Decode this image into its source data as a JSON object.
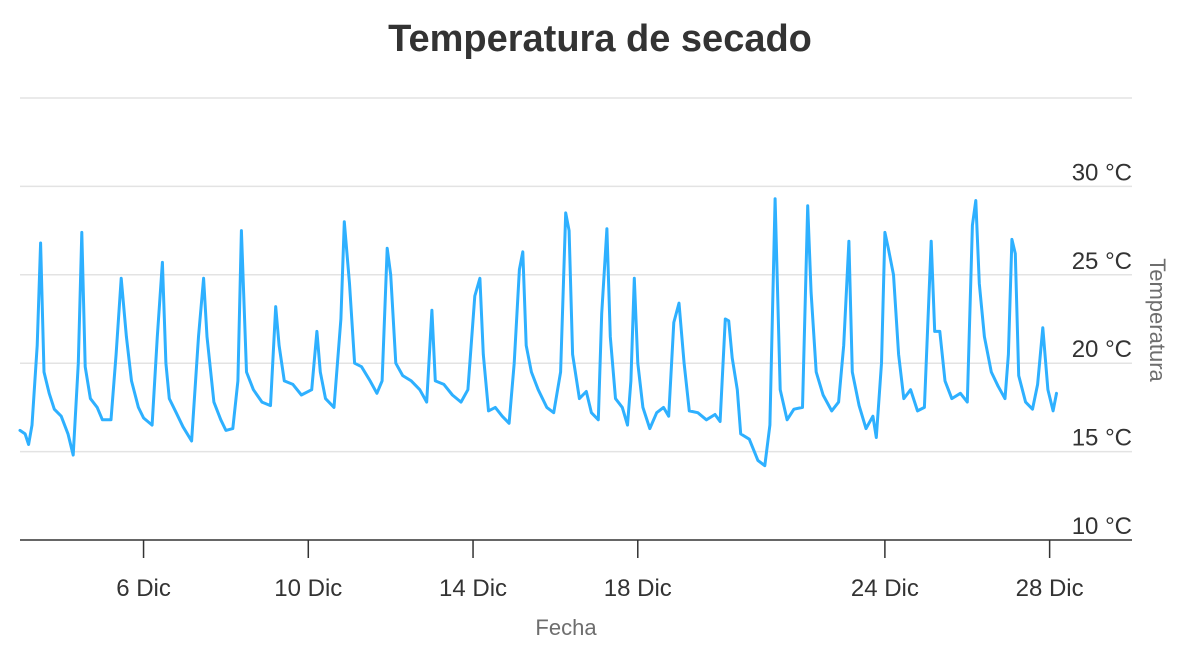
{
  "chart_data": {
    "type": "line",
    "title": "Temperatura de secado",
    "xlabel": "Fecha",
    "ylabel": "Temperatura",
    "x_start": "2023-12-03",
    "x_end": "2023-12-30",
    "ylim": [
      10,
      35
    ],
    "y_ticks": [
      {
        "value": 10,
        "label": "10 °C"
      },
      {
        "value": 15,
        "label": "15 °C"
      },
      {
        "value": 20,
        "label": "20 °C"
      },
      {
        "value": 25,
        "label": "25 °C"
      },
      {
        "value": 30,
        "label": "30 °C"
      }
    ],
    "x_ticks": [
      {
        "date": "2023-12-06",
        "label": "6 Dic"
      },
      {
        "date": "2023-12-10",
        "label": "10 Dic"
      },
      {
        "date": "2023-12-14",
        "label": "14 Dic"
      },
      {
        "date": "2023-12-18",
        "label": "18 Dic"
      },
      {
        "date": "2023-12-24",
        "label": "24 Dic"
      },
      {
        "date": "2023-12-28",
        "label": "28 Dic"
      }
    ],
    "grid": true,
    "line_color": "#2eb0ff",
    "series": [
      {
        "values": [
          [
            "2023-12-03",
            16.2
          ],
          [
            "2023-12-03T03:00",
            16.0
          ],
          [
            "2023-12-03T05:00",
            15.4
          ],
          [
            "2023-12-03T07:00",
            16.5
          ],
          [
            "2023-12-03T10:00",
            21.0
          ],
          [
            "2023-12-03T12:00",
            26.8
          ],
          [
            "2023-12-03T14:00",
            19.5
          ],
          [
            "2023-12-03T17:00",
            18.3
          ],
          [
            "2023-12-03T20:00",
            17.4
          ],
          [
            "2023-12-04",
            17.0
          ],
          [
            "2023-12-04T04:00",
            16.0
          ],
          [
            "2023-12-04T07:00",
            14.8
          ],
          [
            "2023-12-04T10:00",
            20.0
          ],
          [
            "2023-12-04T12:00",
            27.4
          ],
          [
            "2023-12-04T14:00",
            19.8
          ],
          [
            "2023-12-04T17:00",
            18.0
          ],
          [
            "2023-12-04T21:00",
            17.5
          ],
          [
            "2023-12-05",
            16.8
          ],
          [
            "2023-12-05T05:00",
            16.8
          ],
          [
            "2023-12-05T08:00",
            20.5
          ],
          [
            "2023-12-05T11:00",
            24.8
          ],
          [
            "2023-12-05T14:00",
            21.5
          ],
          [
            "2023-12-05T17:00",
            19.0
          ],
          [
            "2023-12-05T21:00",
            17.5
          ],
          [
            "2023-12-06",
            16.9
          ],
          [
            "2023-12-06T05:00",
            16.5
          ],
          [
            "2023-12-06T08:00",
            21.5
          ],
          [
            "2023-12-06T11:00",
            25.7
          ],
          [
            "2023-12-06T13:00",
            20.0
          ],
          [
            "2023-12-06T15:00",
            18.0
          ],
          [
            "2023-12-06T19:00",
            17.2
          ],
          [
            "2023-12-06T23:00",
            16.4
          ],
          [
            "2023-12-07T04:00",
            15.6
          ],
          [
            "2023-12-07T08:00",
            21.5
          ],
          [
            "2023-12-07T11:00",
            24.8
          ],
          [
            "2023-12-07T13:00",
            21.5
          ],
          [
            "2023-12-07T17:00",
            17.8
          ],
          [
            "2023-12-07T21:00",
            16.8
          ],
          [
            "2023-12-08",
            16.2
          ],
          [
            "2023-12-08T04:00",
            16.3
          ],
          [
            "2023-12-08T07:00",
            19.0
          ],
          [
            "2023-12-08T09:00",
            27.5
          ],
          [
            "2023-12-08T12:00",
            19.5
          ],
          [
            "2023-12-08T16:00",
            18.5
          ],
          [
            "2023-12-08T21:00",
            17.8
          ],
          [
            "2023-12-09T02:00",
            17.6
          ],
          [
            "2023-12-09T05:00",
            23.2
          ],
          [
            "2023-12-09T07:00",
            21.0
          ],
          [
            "2023-12-09T10:00",
            19.0
          ],
          [
            "2023-12-09T15:00",
            18.8
          ],
          [
            "2023-12-09T20:00",
            18.2
          ],
          [
            "2023-12-10T02:00",
            18.5
          ],
          [
            "2023-12-10T05:00",
            21.8
          ],
          [
            "2023-12-10T07:00",
            19.5
          ],
          [
            "2023-12-10T10:00",
            18.0
          ],
          [
            "2023-12-10T15:00",
            17.5
          ],
          [
            "2023-12-10T19:00",
            22.5
          ],
          [
            "2023-12-10T21:00",
            28.0
          ],
          [
            "2023-12-11",
            24.5
          ],
          [
            "2023-12-11T03:00",
            20.0
          ],
          [
            "2023-12-11T07:00",
            19.8
          ],
          [
            "2023-12-11T12:00",
            19.0
          ],
          [
            "2023-12-11T16:00",
            18.3
          ],
          [
            "2023-12-11T19:00",
            19.0
          ],
          [
            "2023-12-11T22:00",
            26.5
          ],
          [
            "2023-12-12",
            25.0
          ],
          [
            "2023-12-12T03:00",
            20.0
          ],
          [
            "2023-12-12T07:00",
            19.3
          ],
          [
            "2023-12-12T12:00",
            19.0
          ],
          [
            "2023-12-12T17:00",
            18.5
          ],
          [
            "2023-12-12T21:00",
            17.8
          ],
          [
            "2023-12-13",
            23.0
          ],
          [
            "2023-12-13T02:00",
            19.0
          ],
          [
            "2023-12-13T07:00",
            18.8
          ],
          [
            "2023-12-13T12:00",
            18.2
          ],
          [
            "2023-12-13T17:00",
            17.8
          ],
          [
            "2023-12-13T21:00",
            18.5
          ],
          [
            "2023-12-14T01:00",
            23.8
          ],
          [
            "2023-12-14T04:00",
            24.8
          ],
          [
            "2023-12-14T06:00",
            20.5
          ],
          [
            "2023-12-14T09:00",
            17.3
          ],
          [
            "2023-12-14T13:00",
            17.5
          ],
          [
            "2023-12-14T17:00",
            17.0
          ],
          [
            "2023-12-14T21:00",
            16.6
          ],
          [
            "2023-12-15",
            20.0
          ],
          [
            "2023-12-15T03:00",
            25.3
          ],
          [
            "2023-12-15T05:00",
            26.3
          ],
          [
            "2023-12-15T07:00",
            21.0
          ],
          [
            "2023-12-15T10:00",
            19.5
          ],
          [
            "2023-12-15T14:00",
            18.5
          ],
          [
            "2023-12-15T19:00",
            17.5
          ],
          [
            "2023-12-15T23:00",
            17.2
          ],
          [
            "2023-12-16T03:00",
            19.5
          ],
          [
            "2023-12-16T06:00",
            28.5
          ],
          [
            "2023-12-16T08:00",
            27.5
          ],
          [
            "2023-12-16T10:00",
            20.5
          ],
          [
            "2023-12-16T14:00",
            18.0
          ],
          [
            "2023-12-16T18:00",
            18.4
          ],
          [
            "2023-12-16T21:00",
            17.2
          ],
          [
            "2023-12-17T01:00",
            16.8
          ],
          [
            "2023-12-17T03:00",
            22.8
          ],
          [
            "2023-12-17T06:00",
            27.6
          ],
          [
            "2023-12-17T08:00",
            21.5
          ],
          [
            "2023-12-17T11:00",
            18.0
          ],
          [
            "2023-12-17T15:00",
            17.5
          ],
          [
            "2023-12-17T18:00",
            16.5
          ],
          [
            "2023-12-17T20:00",
            19.0
          ],
          [
            "2023-12-17T22:00",
            24.8
          ],
          [
            "2023-12-18",
            20.0
          ],
          [
            "2023-12-18T03:00",
            17.5
          ],
          [
            "2023-12-18T07:00",
            16.3
          ],
          [
            "2023-12-18T11:00",
            17.2
          ],
          [
            "2023-12-18T15:00",
            17.5
          ],
          [
            "2023-12-18T18:00",
            17.0
          ],
          [
            "2023-12-18T21:00",
            22.3
          ],
          [
            "2023-12-19",
            23.4
          ],
          [
            "2023-12-19T03:00",
            20.0
          ],
          [
            "2023-12-19T06:00",
            17.3
          ],
          [
            "2023-12-19T11:00",
            17.2
          ],
          [
            "2023-12-19T16:00",
            16.8
          ],
          [
            "2023-12-19T21:00",
            17.1
          ],
          [
            "2023-12-20",
            16.7
          ],
          [
            "2023-12-20T03:00",
            22.5
          ],
          [
            "2023-12-20T05:00",
            22.4
          ],
          [
            "2023-12-20T07:00",
            20.3
          ],
          [
            "2023-12-20T10:00",
            18.5
          ],
          [
            "2023-12-20T12:00",
            16.0
          ],
          [
            "2023-12-20T17:00",
            15.7
          ],
          [
            "2023-12-20T22:00",
            14.5
          ],
          [
            "2023-12-21T02:00",
            14.2
          ],
          [
            "2023-12-21T05:00",
            16.5
          ],
          [
            "2023-12-21T08:00",
            29.3
          ],
          [
            "2023-12-21T11:00",
            18.5
          ],
          [
            "2023-12-21T15:00",
            16.8
          ],
          [
            "2023-12-21T19:00",
            17.4
          ],
          [
            "2023-12-22",
            17.5
          ],
          [
            "2023-12-22T03:00",
            28.9
          ],
          [
            "2023-12-22T05:00",
            24.0
          ],
          [
            "2023-12-22T08:00",
            19.5
          ],
          [
            "2023-12-22T12:00",
            18.2
          ],
          [
            "2023-12-22T17:00",
            17.3
          ],
          [
            "2023-12-22T21:00",
            17.8
          ],
          [
            "2023-12-23",
            21.0
          ],
          [
            "2023-12-23T03:00",
            26.9
          ],
          [
            "2023-12-23T05:00",
            19.5
          ],
          [
            "2023-12-23T09:00",
            17.6
          ],
          [
            "2023-12-23T13:00",
            16.3
          ],
          [
            "2023-12-23T17:00",
            17.0
          ],
          [
            "2023-12-23T19:00",
            15.8
          ],
          [
            "2023-12-23T22:00",
            20.0
          ],
          [
            "2023-12-24",
            27.4
          ],
          [
            "2023-12-24T02:00",
            26.5
          ],
          [
            "2023-12-24T05:00",
            25.0
          ],
          [
            "2023-12-24T08:00",
            20.5
          ],
          [
            "2023-12-24T11:00",
            18.0
          ],
          [
            "2023-12-24T15:00",
            18.5
          ],
          [
            "2023-12-24T19:00",
            17.3
          ],
          [
            "2023-12-24T23:00",
            17.5
          ],
          [
            "2023-12-25T03:00",
            26.9
          ],
          [
            "2023-12-25T05:00",
            21.8
          ],
          [
            "2023-12-25T08:00",
            21.8
          ],
          [
            "2023-12-25T11:00",
            19.0
          ],
          [
            "2023-12-25T15:00",
            18.0
          ],
          [
            "2023-12-25T20:00",
            18.3
          ],
          [
            "2023-12-26",
            17.8
          ],
          [
            "2023-12-26T03:00",
            27.8
          ],
          [
            "2023-12-26T05:00",
            29.2
          ],
          [
            "2023-12-26T07:00",
            24.5
          ],
          [
            "2023-12-26T10:00",
            21.5
          ],
          [
            "2023-12-26T14:00",
            19.5
          ],
          [
            "2023-12-26T18:00",
            18.7
          ],
          [
            "2023-12-26T22:00",
            18.0
          ],
          [
            "2023-12-27",
            20.5
          ],
          [
            "2023-12-27T02:00",
            27.0
          ],
          [
            "2023-12-27T04:00",
            26.2
          ],
          [
            "2023-12-27T06:00",
            19.3
          ],
          [
            "2023-12-27T10:00",
            17.8
          ],
          [
            "2023-12-27T14:00",
            17.4
          ],
          [
            "2023-12-27T17:00",
            18.8
          ],
          [
            "2023-12-27T20:00",
            22.0
          ],
          [
            "2023-12-27T23:00",
            18.5
          ],
          [
            "2023-12-28T02:00",
            17.3
          ],
          [
            "2023-12-28T04:00",
            18.3
          ]
        ]
      }
    ]
  }
}
